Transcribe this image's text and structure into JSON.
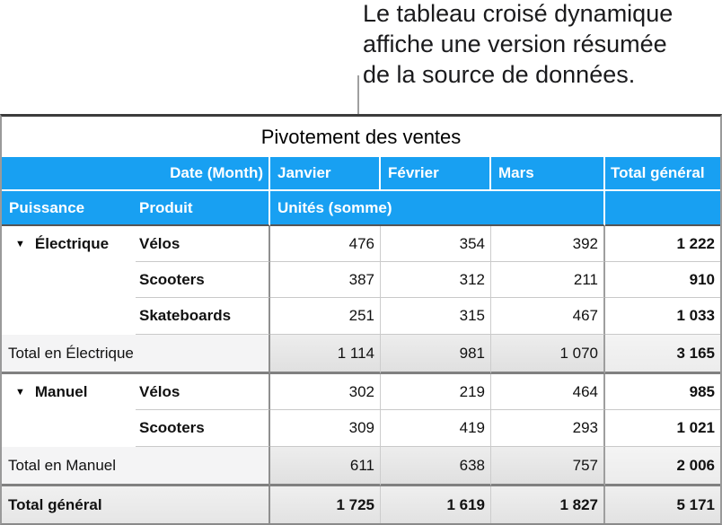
{
  "callout": {
    "lines": [
      "Le tableau croisé dynamique",
      "affiche une version résumée",
      "de la source de données."
    ]
  },
  "icons": {
    "disclosure": "▼"
  },
  "colors": {
    "header_blue": "#18a0f2",
    "subtotal_bg": "#e4e4e4",
    "grand_total_bg": "#e7e7e7"
  },
  "table": {
    "title": "Pivotement des ventes",
    "column_header": {
      "column_field_label": "Date (Month)",
      "months": [
        "Janvier",
        "Février",
        "Mars"
      ],
      "grand_total_label": "Total général"
    },
    "field_header": {
      "row_field_1": "Puissance",
      "row_field_2": "Produit",
      "values_label": "Unités (somme)"
    },
    "groups": [
      {
        "name": "Électrique",
        "rows": [
          {
            "product": "Vélos",
            "values": [
              "476",
              "354",
              "392"
            ],
            "total": "1 222"
          },
          {
            "product": "Scooters",
            "values": [
              "387",
              "312",
              "211"
            ],
            "total": "910"
          },
          {
            "product": "Skateboards",
            "values": [
              "251",
              "315",
              "467"
            ],
            "total": "1 033"
          }
        ],
        "subtotal": {
          "label": "Total en Électrique",
          "values": [
            "1 114",
            "981",
            "1 070"
          ],
          "total": "3 165"
        }
      },
      {
        "name": "Manuel",
        "rows": [
          {
            "product": "Vélos",
            "values": [
              "302",
              "219",
              "464"
            ],
            "total": "985"
          },
          {
            "product": "Scooters",
            "values": [
              "309",
              "419",
              "293"
            ],
            "total": "1 021"
          }
        ],
        "subtotal": {
          "label": "Total en Manuel",
          "values": [
            "611",
            "638",
            "757"
          ],
          "total": "2 006"
        }
      }
    ],
    "grand_total": {
      "label": "Total général",
      "values": [
        "1 725",
        "1 619",
        "1 827"
      ],
      "total": "5 171"
    }
  }
}
